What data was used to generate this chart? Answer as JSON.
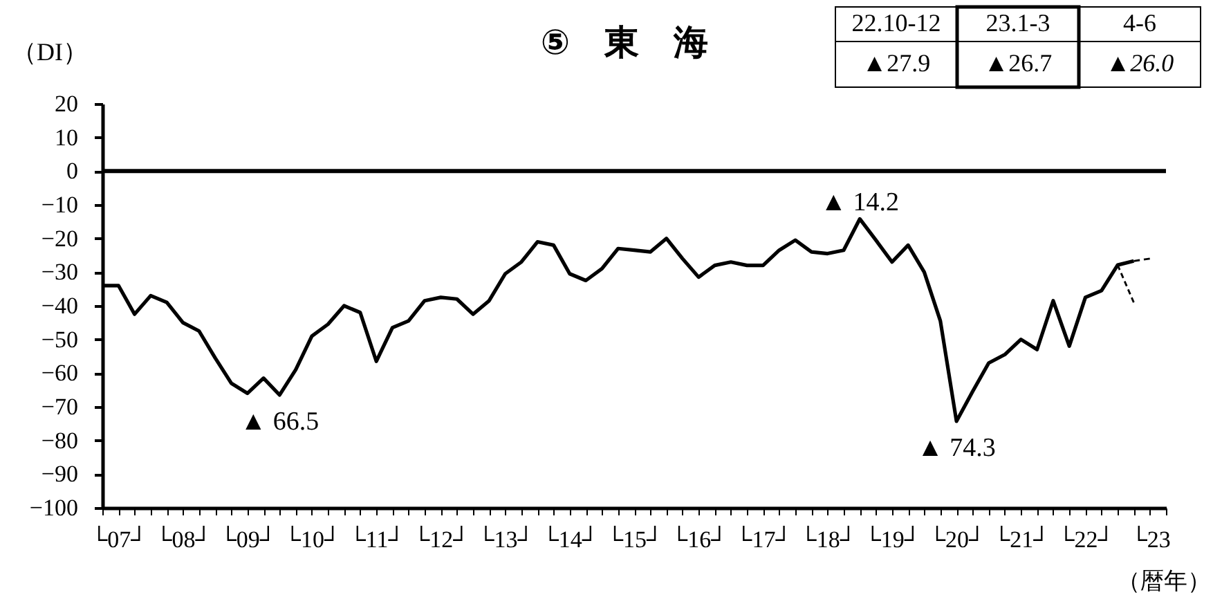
{
  "chart_data": {
    "type": "line",
    "title": "⑤　東　海",
    "ylabel": "（DI）",
    "xlabel": "（暦年）",
    "categories": [
      null,
      "└07┘",
      null,
      null,
      null,
      "└08┘",
      null,
      null,
      null,
      "└09┘",
      null,
      null,
      null,
      "└10┘",
      null,
      null,
      null,
      "└11┘",
      null,
      null,
      null,
      "└12┘",
      null,
      null,
      null,
      "└13┘",
      null,
      null,
      null,
      "└14┘",
      null,
      null,
      null,
      "└15┘",
      null,
      null,
      null,
      "└16┘",
      null,
      null,
      null,
      "└17┘",
      null,
      null,
      null,
      "└18┘",
      null,
      null,
      null,
      "└19┘",
      null,
      null,
      null,
      "└20┘",
      null,
      null,
      null,
      "└21┘",
      null,
      null,
      null,
      "└22┘",
      null,
      null,
      null,
      "└23",
      null
    ],
    "series": [
      {
        "color": "#000000",
        "line_style": "solid",
        "values": [
          -34,
          -34,
          -42.5,
          -37,
          -39,
          -45,
          -47.5,
          -55.5,
          -63,
          -66,
          -61.5,
          -66.5,
          -59,
          -49,
          -45.5,
          -40,
          -42,
          -56.5,
          -46.5,
          -44.5,
          -38.5,
          -37.5,
          -38,
          -42.5,
          -38.5,
          -30.5,
          -27,
          -21,
          -22,
          -30.5,
          -32.5,
          -29,
          -23,
          -23.5,
          -24,
          -20,
          -26,
          -31.5,
          -28,
          -27,
          -28,
          -28,
          -23.5,
          -20.5,
          -24,
          -24.5,
          -23.5,
          -14.2,
          -20.5,
          -27,
          -22,
          -30,
          -44.5,
          -74.3,
          -65.5,
          -57,
          -54.5,
          -50,
          -53,
          -38.5,
          -52,
          -37.5,
          -35.5,
          -27.9,
          -26.7,
          null,
          null
        ]
      },
      {
        "color": "#000000",
        "line_style": "dashed",
        "values": [
          null,
          null,
          null,
          null,
          null,
          null,
          null,
          null,
          null,
          null,
          null,
          null,
          null,
          null,
          null,
          null,
          null,
          null,
          null,
          null,
          null,
          null,
          null,
          null,
          null,
          null,
          null,
          null,
          null,
          null,
          null,
          null,
          null,
          null,
          null,
          null,
          null,
          null,
          null,
          null,
          null,
          null,
          null,
          null,
          null,
          null,
          null,
          null,
          null,
          null,
          null,
          null,
          null,
          null,
          null,
          null,
          null,
          null,
          null,
          null,
          null,
          null,
          null,
          null,
          -26.7,
          -26.0,
          null
        ]
      },
      {
        "color": "#000000",
        "line_style": "dashed",
        "values": [
          null,
          null,
          null,
          null,
          null,
          null,
          null,
          null,
          null,
          null,
          null,
          null,
          null,
          null,
          null,
          null,
          null,
          null,
          null,
          null,
          null,
          null,
          null,
          null,
          null,
          null,
          null,
          null,
          null,
          null,
          null,
          null,
          null,
          null,
          null,
          null,
          null,
          null,
          null,
          null,
          null,
          null,
          null,
          null,
          null,
          null,
          null,
          null,
          null,
          null,
          null,
          null,
          null,
          null,
          null,
          null,
          null,
          null,
          null,
          null,
          null,
          null,
          null,
          -27.9,
          -39,
          null,
          null
        ]
      }
    ],
    "ylim": [
      -100,
      20
    ],
    "yticks": [
      -100,
      -90,
      -80,
      -70,
      -60,
      -50,
      -40,
      -30,
      -20,
      -10,
      0,
      10,
      20
    ],
    "ref_lines": [
      {
        "axis": "y",
        "value": 0,
        "color": "#000000"
      }
    ],
    "annotations": [
      {
        "text": "▲ 66.5",
        "y": -66.5
      },
      {
        "text": "▲ 14.2",
        "y": -14.2
      },
      {
        "text": "▲ 74.3",
        "y": -74.3
      },
      "22.10-12",
      "23.1-3",
      "4-6",
      "▲27.9",
      "▲26.7",
      "▲26.0"
    ]
  }
}
